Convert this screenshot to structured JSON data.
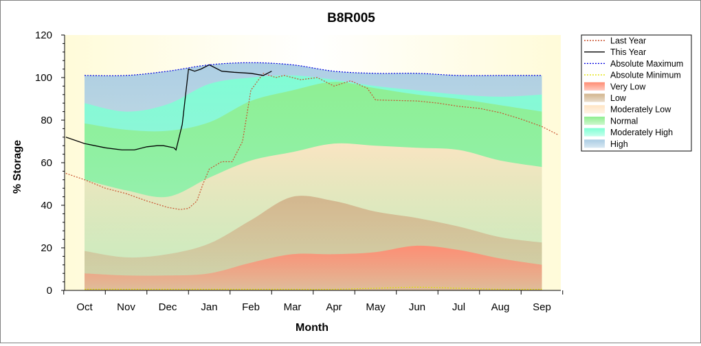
{
  "chart_data": {
    "type": "area",
    "title": "B8R005",
    "xlabel": "Month",
    "ylabel": "% Storage",
    "ylim": [
      0,
      120
    ],
    "yticks": [
      0,
      20,
      40,
      60,
      80,
      100,
      120
    ],
    "categories": [
      "Oct",
      "Nov",
      "Dec",
      "Jan",
      "Feb",
      "Mar",
      "Apr",
      "May",
      "Jun",
      "Jul",
      "Aug",
      "Sep"
    ],
    "legend_position": "right",
    "bands": [
      {
        "name": "Very Low",
        "color": "#ff8c73",
        "upper": [
          8,
          7,
          7,
          8,
          13,
          17,
          17,
          18,
          21,
          19,
          15,
          12
        ]
      },
      {
        "name": "Low",
        "color": "#d2b48c",
        "upper": [
          18.5,
          15.5,
          17,
          22,
          33,
          44,
          42,
          37,
          34,
          30,
          25,
          22.5
        ]
      },
      {
        "name": "Moderately Low",
        "color": "#ffe4c4",
        "upper": [
          52,
          47,
          44,
          53,
          61,
          65,
          69,
          68,
          67,
          66,
          61,
          58
        ]
      },
      {
        "name": "Normal",
        "color": "#90ee90",
        "upper": [
          78.5,
          75.5,
          75,
          79,
          89,
          94,
          98,
          95,
          92,
          90,
          87,
          84
        ]
      },
      {
        "name": "Moderately High",
        "color": "#7fffd4",
        "upper": [
          88,
          84,
          87.5,
          97,
          100,
          101,
          99,
          96,
          94,
          92,
          91,
          92
        ]
      },
      {
        "name": "High",
        "color": "#a9cce3",
        "upper": [
          101,
          101,
          103,
          106,
          107,
          106,
          103,
          102,
          102,
          101,
          101,
          101
        ]
      }
    ],
    "series": [
      {
        "name": "Last Year",
        "color": "#c8502d",
        "style": "dotted",
        "x": [
          -0.45,
          0,
          0.5,
          1,
          1.5,
          2,
          2.3,
          2.5,
          2.7,
          2.85,
          3,
          3.3,
          3.55,
          3.8,
          4,
          4.3,
          4.6,
          4.8,
          5.2,
          5.6,
          6,
          6.4,
          6.8,
          7,
          8,
          8.5,
          9,
          9.5,
          10,
          10.5,
          11,
          11.4
        ],
        "y": [
          55,
          52,
          48,
          45.5,
          42,
          39,
          38,
          38.5,
          42,
          50,
          57,
          60.5,
          60.5,
          70,
          94,
          102,
          100,
          101,
          99,
          100,
          96,
          98.5,
          95,
          89.5,
          89,
          88,
          86.5,
          85.5,
          83.5,
          80.5,
          77,
          73
        ]
      },
      {
        "name": "This Year",
        "color": "#000000",
        "style": "solid",
        "x": [
          -0.45,
          0,
          0.5,
          0.9,
          1.2,
          1.5,
          1.75,
          1.9,
          2.15,
          2.2,
          2.35,
          2.5,
          2.65,
          2.8,
          3,
          3.3,
          3.6,
          4,
          4.3,
          4.5
        ],
        "y": [
          72,
          69,
          67,
          66,
          66,
          67.5,
          68,
          68,
          67,
          66,
          78,
          104,
          103,
          104,
          106,
          103,
          102.5,
          102,
          101,
          103
        ]
      },
      {
        "name": "Absolute Maximum",
        "color": "#0000e0",
        "style": "dotted",
        "x": [
          0,
          1,
          2,
          3,
          4,
          5,
          6,
          7,
          8,
          9,
          10,
          11
        ],
        "y": [
          101,
          101,
          103,
          106,
          107,
          106,
          103,
          102,
          102,
          101,
          101,
          101
        ]
      },
      {
        "name": "Absolute Minimum",
        "color": "#e0e000",
        "style": "dotted",
        "x": [
          0,
          1,
          2,
          3,
          4,
          5,
          6,
          7,
          8,
          9,
          10,
          11
        ],
        "y": [
          0.5,
          0.5,
          0.5,
          0.5,
          0.5,
          0.5,
          0.5,
          1,
          1.5,
          1,
          0.5,
          0.5
        ]
      }
    ],
    "legend": [
      {
        "label": "Last Year",
        "kind": "line",
        "color": "#c8502d",
        "style": "dotted"
      },
      {
        "label": "This Year",
        "kind": "line",
        "color": "#000000",
        "style": "solid"
      },
      {
        "label": "Absolute Maximum",
        "kind": "line",
        "color": "#0000e0",
        "style": "dotted"
      },
      {
        "label": "Absolute Minimum",
        "kind": "line",
        "color": "#e0e000",
        "style": "dotted"
      },
      {
        "label": "Very Low",
        "kind": "band",
        "color": "#ff8c73"
      },
      {
        "label": "Low",
        "kind": "band",
        "color": "#d2b48c"
      },
      {
        "label": "Moderately Low",
        "kind": "band",
        "color": "#ffe4c4"
      },
      {
        "label": "Normal",
        "kind": "band",
        "color": "#90ee90"
      },
      {
        "label": "Moderately High",
        "kind": "band",
        "color": "#7fffd4"
      },
      {
        "label": "High",
        "kind": "band",
        "color": "#a9cce3"
      }
    ],
    "plot_background": "#fffde6"
  }
}
